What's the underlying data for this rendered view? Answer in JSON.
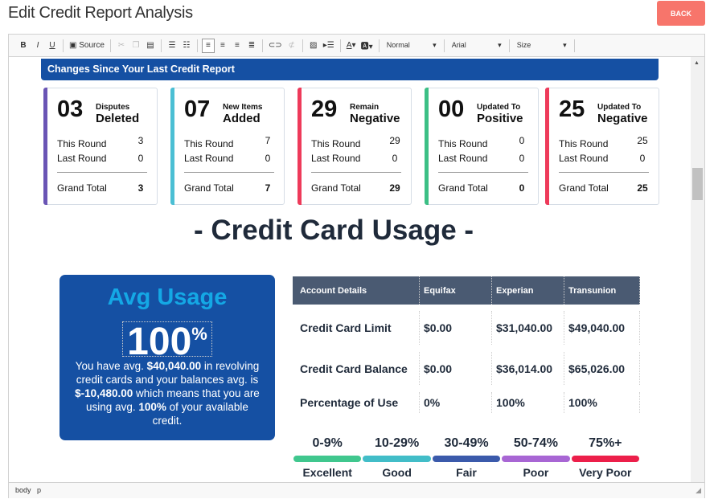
{
  "header": {
    "title": "Edit Credit Report Analysis",
    "back_label": "BACK"
  },
  "toolbar": {
    "source_label": "Source",
    "format": "Normal",
    "font": "Arial",
    "size": "Size"
  },
  "status_path": [
    "body",
    "p"
  ],
  "changes": {
    "title": "Changes Since Your Last Credit Report",
    "cards": [
      {
        "count": "03",
        "label_top": "Disputes",
        "label_main": "Deleted",
        "this_round": "3",
        "last_round": "0",
        "grand_total": "3",
        "color": "#6a55b5"
      },
      {
        "count": "07",
        "label_top": "New Items",
        "label_main": "Added",
        "this_round": "7",
        "last_round": "0",
        "grand_total": "7",
        "color": "#4bbfd4"
      },
      {
        "count": "29",
        "label_top": "Remain",
        "label_main": "Negative",
        "this_round": "29",
        "last_round": "0",
        "grand_total": "29",
        "color": "#ee3a5a"
      },
      {
        "count": "00",
        "label_top": "Updated To",
        "label_main": "Positive",
        "this_round": "0",
        "last_round": "0",
        "grand_total": "0",
        "color": "#3cbf85"
      },
      {
        "count": "25",
        "label_top": "Updated To",
        "label_main": "Negative",
        "this_round": "25",
        "last_round": "0",
        "grand_total": "25",
        "color": "#ee3a5a"
      }
    ],
    "row_labels": {
      "this_round": "This Round",
      "last_round": "Last Round",
      "grand_total": "Grand Total"
    }
  },
  "usage": {
    "heading": "- Credit Card Usage -",
    "avg_title": "Avg Usage",
    "avg_value": "100",
    "avg_unit": "%",
    "desc": [
      "You have avg. ",
      "$40,040.00",
      " in revolving credit cards and your balances avg. is ",
      "$-10,480.00",
      " which means that you are using avg. ",
      "100%",
      " of your available credit."
    ],
    "table": {
      "headers": [
        "Account Details",
        "Equifax",
        "Experian",
        "Transunion"
      ],
      "rows": [
        [
          "Credit Card Limit",
          "$0.00",
          "$31,040.00",
          "$49,040.00"
        ],
        [
          "Credit Card Balance",
          "$0.00",
          "$36,014.00",
          "$65,026.00"
        ],
        [
          "Percentage of Use",
          "0%",
          "100%",
          "100%"
        ]
      ]
    },
    "scale": [
      {
        "range": "0-9%",
        "label": "Excellent",
        "color": "#40c78e"
      },
      {
        "range": "10-29%",
        "label": "Good",
        "color": "#42bdc8"
      },
      {
        "range": "30-49%",
        "label": "Fair",
        "color": "#3b5aab"
      },
      {
        "range": "50-74%",
        "label": "Poor",
        "color": "#a866d4"
      },
      {
        "range": "75%+",
        "label": "Very Poor",
        "color": "#ec1f4a"
      }
    ]
  }
}
